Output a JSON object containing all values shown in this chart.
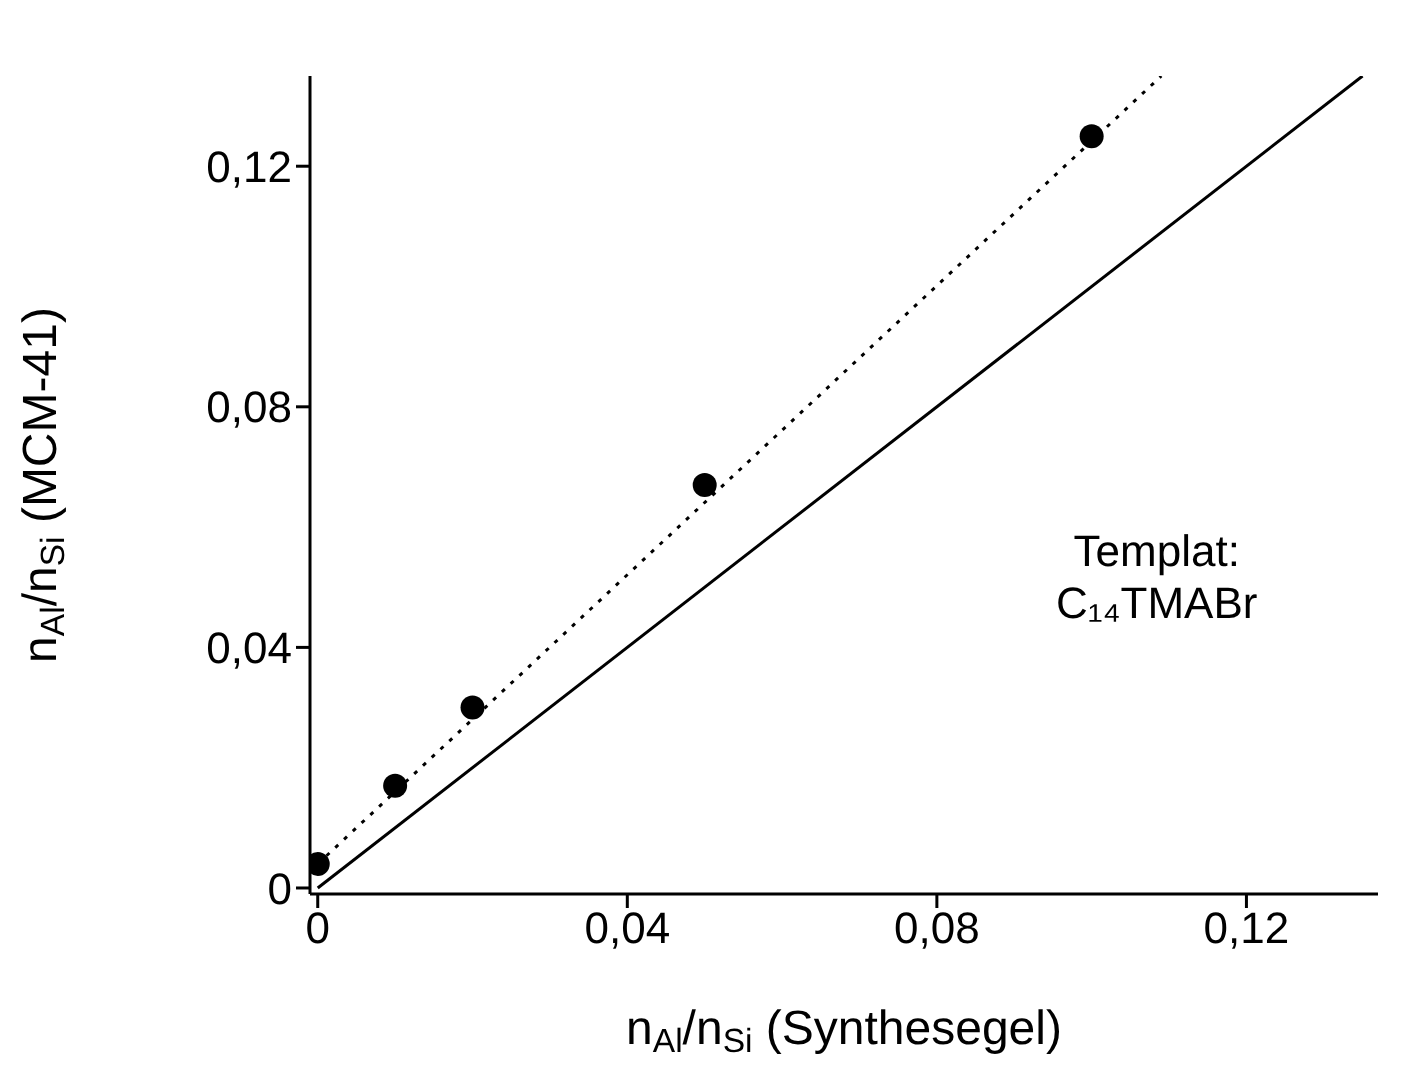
{
  "chart_data": {
    "type": "scatter",
    "xlabel": "n$_{Al}$/n$_{Si}$ (Synthesegel)",
    "ylabel": "n$_{Al}$/n$_{Si}$ (MCM-41)",
    "xlim": [
      -0.001,
      0.137
    ],
    "ylim": [
      -0.001,
      0.135
    ],
    "xticks": [
      {
        "value": 0,
        "label": "0"
      },
      {
        "value": 0.04,
        "label": "0,04"
      },
      {
        "value": 0.08,
        "label": "0,08"
      },
      {
        "value": 0.12,
        "label": "0,12"
      }
    ],
    "yticks": [
      {
        "value": 0,
        "label": "0"
      },
      {
        "value": 0.04,
        "label": "0,04"
      },
      {
        "value": 0.08,
        "label": "0,08"
      },
      {
        "value": 0.12,
        "label": "0,12"
      }
    ],
    "grid": false,
    "annotations": [
      "Templat:\nC₁₄TMABr"
    ],
    "series": [
      {
        "type": "line",
        "color": "#000000",
        "line_style": "solid",
        "marker": "none",
        "x": [
          0,
          0.135
        ],
        "values": [
          0,
          0.135
        ]
      },
      {
        "type": "line",
        "color": "#000000",
        "line_style": "dotted",
        "marker": "none",
        "x": [
          0,
          0.109
        ],
        "values": [
          0.004,
          0.135
        ]
      },
      {
        "color": "#000000",
        "marker": "circle",
        "x": [
          0,
          0.01,
          0.02,
          0.05,
          0.1
        ],
        "values": [
          0.004,
          0.017,
          0.03,
          0.067,
          0.125
        ]
      }
    ]
  }
}
